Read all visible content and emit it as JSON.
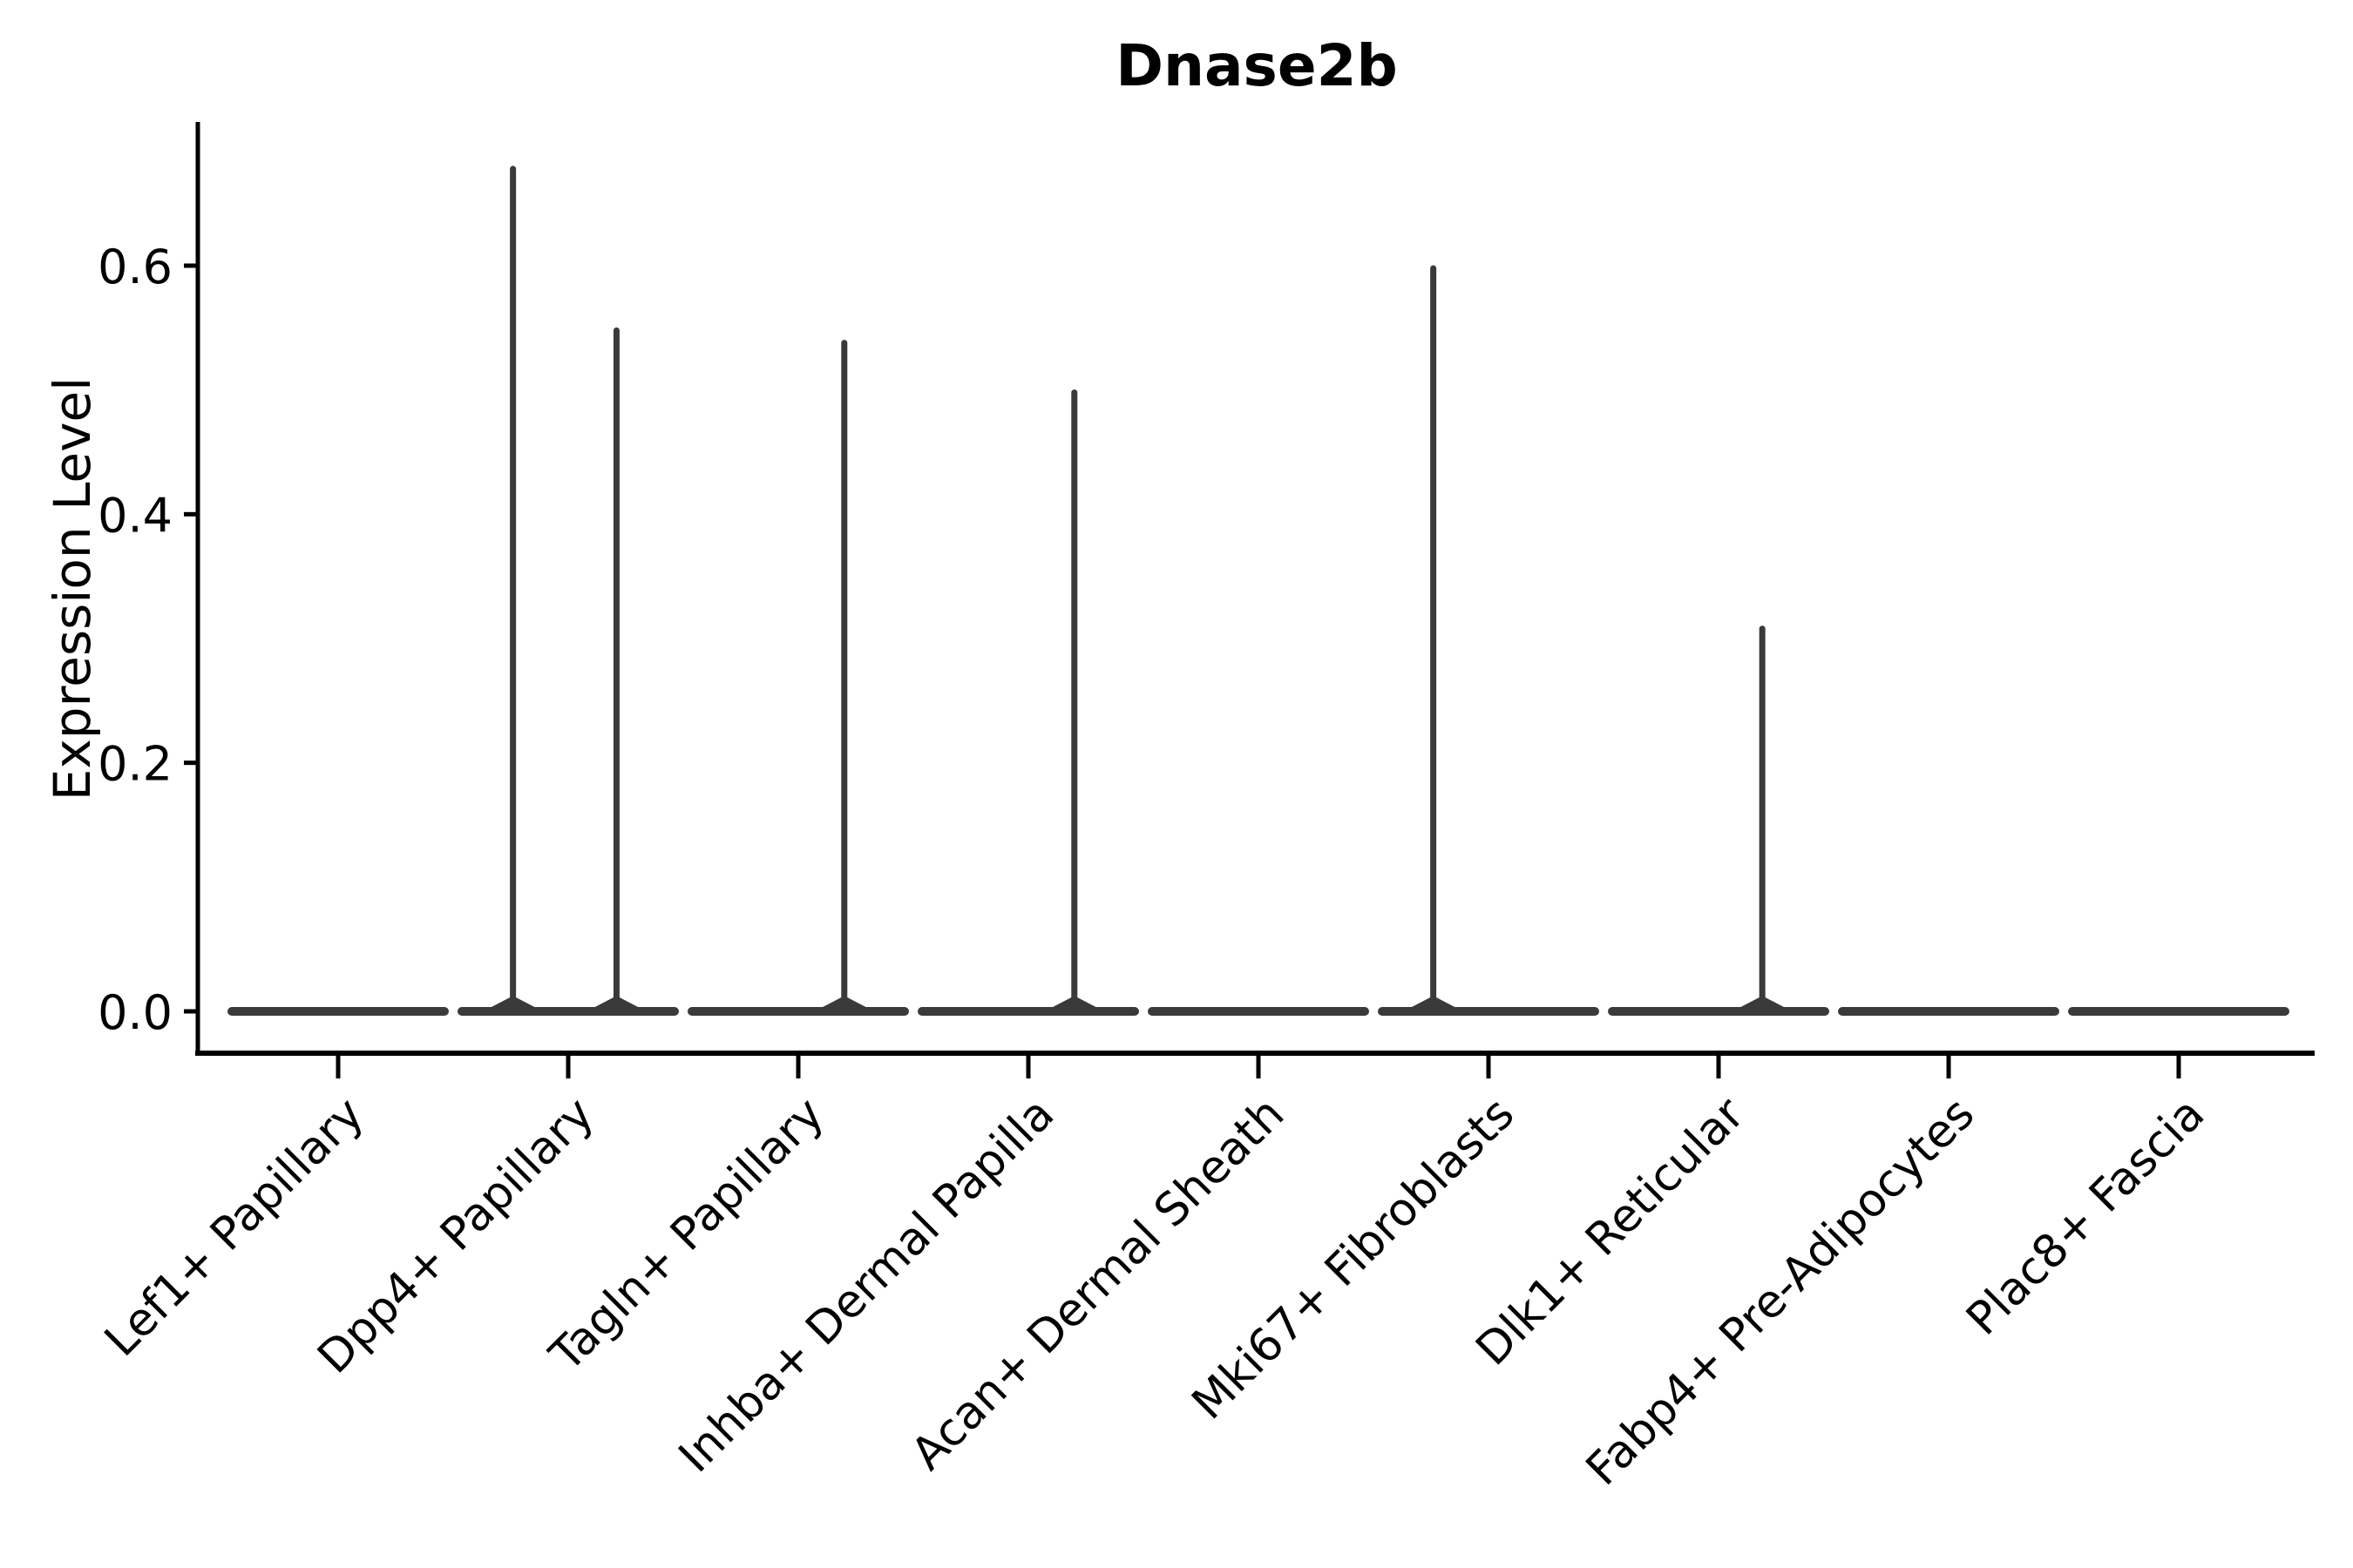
{
  "figure": {
    "title": "Dnase2b",
    "y_axis_label": "Expression Level"
  },
  "chart_data": {
    "type": "violin",
    "title": "Dnase2b",
    "xlabel": "",
    "ylabel": "Expression Level",
    "categories": [
      "Lef1+ Papillary",
      "Dpp4+ Papillary",
      "Tagln+ Papillary",
      "Inhba+ Dermal Papilla",
      "Acan+ Dermal Sheath",
      "Mki67+ Fibroblasts",
      "Dlk1+ Reticular",
      "Fabp4+ Pre-Adipocytes",
      "Plac8+ Fascia"
    ],
    "y_tick_labels": [
      "0.0",
      "0.2",
      "0.4",
      "0.6"
    ],
    "y_tick_values": [
      0.0,
      0.2,
      0.4,
      0.6
    ],
    "ylim": [
      -0.034,
      0.714
    ],
    "x_tick_rotation_deg": 45,
    "grid": false,
    "legend_position": "none",
    "violins": [
      {
        "category": "Lef1+ Papillary",
        "baseline_value": 0.0,
        "max_value": 0.0,
        "peaks": []
      },
      {
        "category": "Dpp4+ Papillary",
        "baseline_value": 0.0,
        "max_value": 0.68,
        "peaks": [
          {
            "value": 0.68,
            "x_offset_frac": -0.24
          },
          {
            "value": 0.55,
            "x_offset_frac": 0.21
          }
        ]
      },
      {
        "category": "Tagln+ Papillary",
        "baseline_value": 0.0,
        "max_value": 0.54,
        "peaks": [
          {
            "value": 0.54,
            "x_offset_frac": 0.2
          }
        ]
      },
      {
        "category": "Inhba+ Dermal Papilla",
        "baseline_value": 0.0,
        "max_value": 0.5,
        "peaks": [
          {
            "value": 0.5,
            "x_offset_frac": 0.2
          }
        ]
      },
      {
        "category": "Acan+ Dermal Sheath",
        "baseline_value": 0.0,
        "max_value": 0.0,
        "peaks": []
      },
      {
        "category": "Mki67+ Fibroblasts",
        "baseline_value": 0.0,
        "max_value": 0.6,
        "peaks": [
          {
            "value": 0.6,
            "x_offset_frac": -0.24
          }
        ]
      },
      {
        "category": "Dlk1+ Reticular",
        "baseline_value": 0.0,
        "max_value": 0.31,
        "peaks": [
          {
            "value": 0.31,
            "x_offset_frac": 0.19
          }
        ]
      },
      {
        "category": "Fabp4+ Pre-Adipocytes",
        "baseline_value": 0.0,
        "max_value": 0.0,
        "peaks": []
      },
      {
        "category": "Plac8+ Fascia",
        "baseline_value": 0.0,
        "max_value": 0.0,
        "peaks": []
      }
    ],
    "colors": {
      "violin": "#3a3a3a",
      "axis": "#000000",
      "text": "#000000",
      "background": "#ffffff"
    }
  }
}
